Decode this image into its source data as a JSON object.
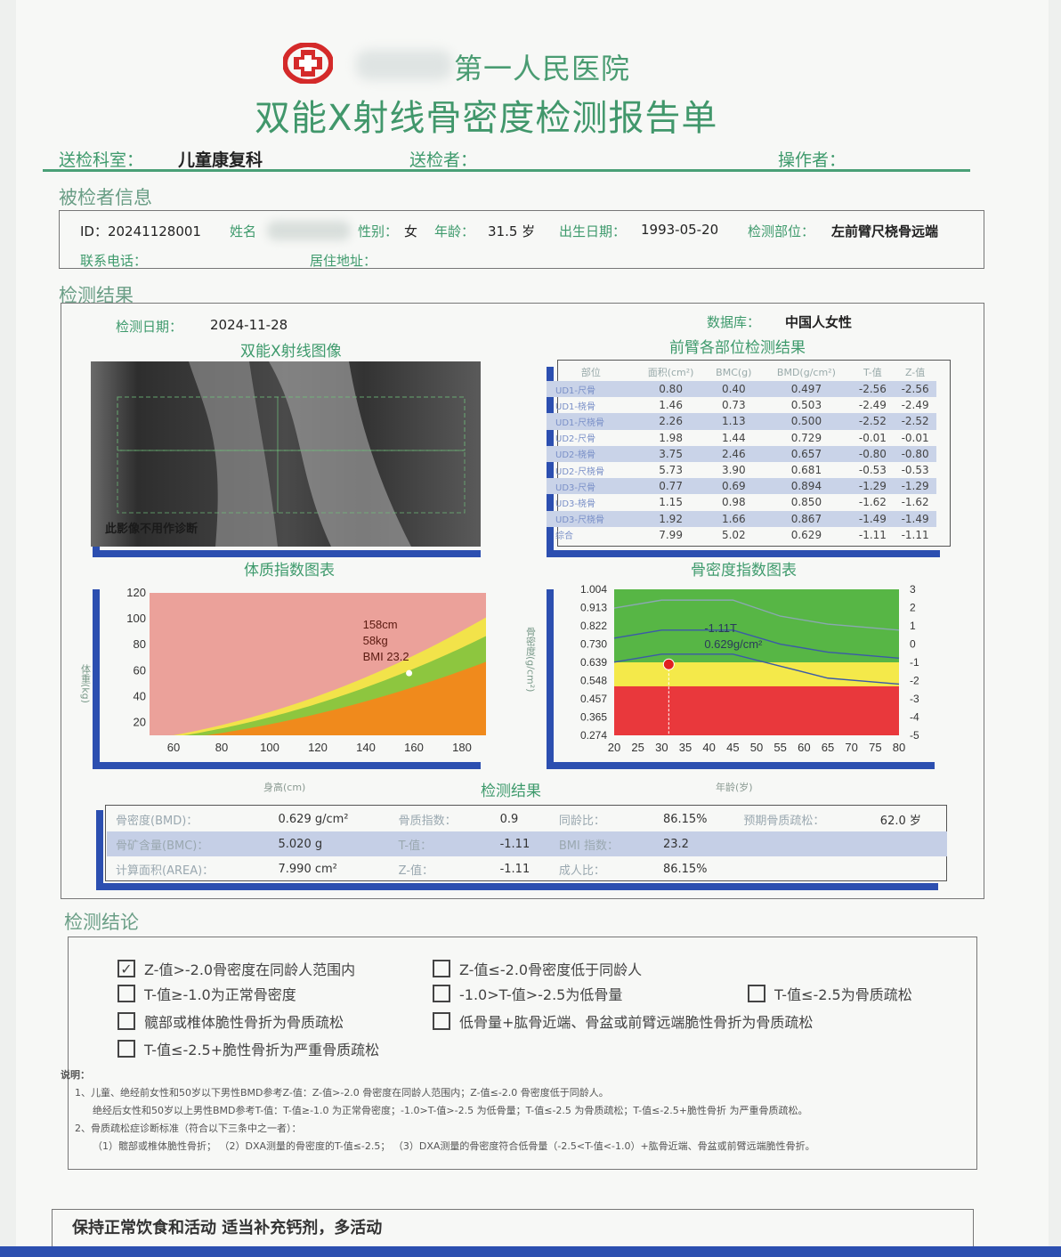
{
  "header": {
    "hospital_name": "第一人民医院",
    "title": "双能X射线骨密度检测报告单",
    "dept_label": "送检科室：",
    "dept_value": "儿童康复科",
    "sender_label": "送检者：",
    "operator_label": "操作者："
  },
  "patient": {
    "section_title": "被检者信息",
    "id": "ID：20241128001",
    "name_label": "姓名",
    "sex_label": "性别：",
    "sex_value": "女",
    "age_label": "年龄：",
    "age_value": "31.5 岁",
    "dob_label": "出生日期：",
    "dob_value": "1993-05-20",
    "site_label": "检测部位：",
    "site_value": "左前臂尺桡骨远端",
    "phone_label": "联系电话：",
    "address_label": "居住地址："
  },
  "results": {
    "section_title": "检测结果",
    "date_label": "检测日期：",
    "date_value": "2024-11-28",
    "db_label": "数据库：",
    "db_value": "中国人女性",
    "image_title": "双能X射线图像",
    "image_caption": "此影像不用作诊断",
    "table_title": "前臂各部位检测结果",
    "table_headers": [
      "部位",
      "面积(cm²)",
      "BMC(g)",
      "BMD(g/cm²)",
      "T-值",
      "Z-值"
    ],
    "table_rows": [
      {
        "site": "UD1-尺骨",
        "area": "0.80",
        "bmc": "0.40",
        "bmd": "0.497",
        "t": "-2.56",
        "z": "-2.56",
        "shade": true
      },
      {
        "site": "UD1-桡骨",
        "area": "1.46",
        "bmc": "0.73",
        "bmd": "0.503",
        "t": "-2.49",
        "z": "-2.49",
        "shade": false
      },
      {
        "site": "UD1-尺桡骨",
        "area": "2.26",
        "bmc": "1.13",
        "bmd": "0.500",
        "t": "-2.52",
        "z": "-2.52",
        "shade": true
      },
      {
        "site": "UD2-尺骨",
        "area": "1.98",
        "bmc": "1.44",
        "bmd": "0.729",
        "t": "-0.01",
        "z": "-0.01",
        "shade": false
      },
      {
        "site": "UD2-桡骨",
        "area": "3.75",
        "bmc": "2.46",
        "bmd": "0.657",
        "t": "-0.80",
        "z": "-0.80",
        "shade": true
      },
      {
        "site": "UD2-尺桡骨",
        "area": "5.73",
        "bmc": "3.90",
        "bmd": "0.681",
        "t": "-0.53",
        "z": "-0.53",
        "shade": false
      },
      {
        "site": "UD3-尺骨",
        "area": "0.77",
        "bmc": "0.69",
        "bmd": "0.894",
        "t": "-1.29",
        "z": "-1.29",
        "shade": true
      },
      {
        "site": "UD3-桡骨",
        "area": "1.15",
        "bmc": "0.98",
        "bmd": "0.850",
        "t": "-1.62",
        "z": "-1.62",
        "shade": false
      },
      {
        "site": "UD3-尺桡骨",
        "area": "1.92",
        "bmc": "1.66",
        "bmd": "0.867",
        "t": "-1.49",
        "z": "-1.49",
        "shade": true
      },
      {
        "site": "综合",
        "area": "7.99",
        "bmc": "5.02",
        "bmd": "0.629",
        "t": "-1.11",
        "z": "-1.11",
        "shade": false
      }
    ],
    "bmi_chart_title": "体质指数图表",
    "bmd_chart_title": "骨密度指数图表",
    "summary_title": "检测结果",
    "bmi_xlabel": "身高(cm)",
    "bmi_ylabel": "体重(kg)",
    "bmd_xlabel": "年龄(岁)",
    "bmd_ylabel": "骨密度(g/cm²)"
  },
  "chart_data": [
    {
      "type": "area",
      "title": "体质指数图表",
      "xlabel": "身高(cm)",
      "ylabel": "体重(kg)",
      "xlim": [
        50,
        190
      ],
      "ylim": [
        10,
        120
      ],
      "x_ticks": [
        "60",
        "80",
        "100",
        "120",
        "140",
        "160",
        "180"
      ],
      "y_ticks": [
        "20",
        "40",
        "60",
        "80",
        "100",
        "120"
      ],
      "bands_bmi": [
        18.5,
        24,
        28
      ],
      "band_colors": [
        "#f08a1c",
        "#8dc63f",
        "#f2e34a",
        "#eba19a"
      ],
      "marker": {
        "height": 158,
        "weight": 58,
        "labels": [
          "158cm",
          "58kg",
          "BMI 23.2"
        ]
      }
    },
    {
      "type": "line",
      "title": "骨密度指数图表",
      "xlabel": "年龄(岁)",
      "ylabel": "骨密度(g/cm²)",
      "xlim": [
        20,
        80
      ],
      "ylim": [
        0.274,
        1.004
      ],
      "x_ticks": [
        "20",
        "25",
        "30",
        "35",
        "40",
        "45",
        "50",
        "55",
        "60",
        "65",
        "70",
        "75",
        "80"
      ],
      "y_ticks": [
        "0.274",
        "0.365",
        "0.457",
        "0.548",
        "0.639",
        "0.730",
        "0.822",
        "0.913",
        "1.004"
      ],
      "y2_ticks": [
        "3",
        "2",
        "1",
        "0",
        "-1",
        "-2",
        "-3",
        "-4",
        "-5"
      ],
      "zone_colors": [
        "#e9383c",
        "#f4e94a",
        "#57b645"
      ],
      "marker": {
        "age": 31.5,
        "bmd": 0.629,
        "labels": [
          "-1.11T",
          "0.629g/cm²"
        ]
      }
    }
  ],
  "summary": {
    "rows": [
      [
        {
          "label": "骨密度(BMD)：",
          "value": "0.629",
          "unit": "g/cm²"
        },
        {
          "label": "骨质指数：",
          "value": "0.9"
        },
        {
          "label": "同龄比：",
          "value": "86.15%"
        },
        {
          "label": "预期骨质疏松：",
          "value": "62.0",
          "unit": "岁"
        }
      ],
      [
        {
          "label": "骨矿含量(BMC)：",
          "value": "5.020",
          "unit": "g"
        },
        {
          "label": "T-值：",
          "value": "-1.11"
        },
        {
          "label": "BMI 指数：",
          "value": "23.2"
        },
        {
          "label": "",
          "value": ""
        }
      ],
      [
        {
          "label": "计算面积(AREA)：",
          "value": "7.990",
          "unit": "cm²"
        },
        {
          "label": "Z-值：",
          "value": "-1.11"
        },
        {
          "label": "成人比：",
          "value": "86.15%"
        },
        {
          "label": "",
          "value": ""
        }
      ]
    ]
  },
  "conclusion": {
    "section_title": "检测结论",
    "options": [
      {
        "text": "Z-值>-2.0骨密度在同龄人范围内",
        "checked": true
      },
      {
        "text": "Z-值≤-2.0骨密度低于同龄人",
        "checked": false
      },
      {
        "text": "T-值≥-1.0为正常骨密度",
        "checked": false
      },
      {
        "text": "-1.0>T-值>-2.5为低骨量",
        "checked": false
      },
      {
        "text": "T-值≤-2.5为骨质疏松",
        "checked": false
      },
      {
        "text": "髋部或椎体脆性骨折为骨质疏松",
        "checked": false
      },
      {
        "text": "低骨量+肱骨近端、骨盆或前臂远端脆性骨折为骨质疏松",
        "checked": false
      },
      {
        "text": "T-值≤-2.5+脆性骨折为严重骨质疏松",
        "checked": false
      }
    ],
    "check_mark": "✓",
    "notes_title": "说明：",
    "notes": [
      "1、儿童、绝经前女性和50岁以下男性BMD参考Z-值：Z-值>-2.0 骨密度在同龄人范围内；Z-值≤-2.0 骨密度低于同龄人。",
      "绝经后女性和50岁以上男性BMD参考T-值：T-值≥-1.0 为正常骨密度；-1.0>T-值>-2.5 为低骨量；T-值≤-2.5 为骨质疏松；T-值≤-2.5+脆性骨折 为严重骨质疏松。",
      "2、骨质疏松症诊断标准（符合以下三条中之一者）：",
      "（1）髋部或椎体脆性骨折；  （2）DXA测量的骨密度的T-值≤-2.5；  （3）DXA测量的骨密度符合低骨量（-2.5<T-值<-1.0）+肱骨近端、骨盆或前臂远端脆性骨折。"
    ]
  },
  "advice": {
    "text": "保持正常饮食和活动  适当补充钙剂，多活动"
  }
}
